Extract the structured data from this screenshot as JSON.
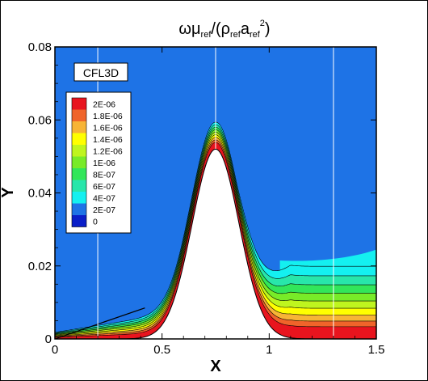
{
  "chart_data": {
    "type": "heatmap",
    "title_parts": {
      "omega": "ωμ",
      "ref1": "ref",
      "mid": "/(ρ",
      "ref2": "ref",
      "a": "a",
      "ref3": "ref",
      "sup": "2",
      "close": ")"
    },
    "xlabel": "X",
    "ylabel": "Y",
    "xlim": [
      0,
      1.5
    ],
    "ylim": [
      0,
      0.08
    ],
    "x_ticks": [
      0,
      0.5,
      1,
      1.5
    ],
    "x_tick_labels": [
      "0",
      "0.5",
      "1",
      "1.5"
    ],
    "y_ticks": [
      0,
      0.02,
      0.04,
      0.06,
      0.08
    ],
    "y_tick_labels": [
      "0",
      "0.02",
      "0.04",
      "0.06",
      "0.08"
    ],
    "solver_label": "CFL3D",
    "background_color": "#1e73e6",
    "legend": {
      "placement": "upper-left",
      "levels": [
        {
          "label": "2E-06",
          "color": "#e8141e"
        },
        {
          "label": "1.8E-06",
          "color": "#f0642a"
        },
        {
          "label": "1.6E-06",
          "color": "#f7b436"
        },
        {
          "label": "1.4E-06",
          "color": "#ffff00"
        },
        {
          "label": "1.2E-06",
          "color": "#bff51e"
        },
        {
          "label": "1E-06",
          "color": "#78eb28"
        },
        {
          "label": "8E-07",
          "color": "#32e65a"
        },
        {
          "label": "6E-07",
          "color": "#28e6aa"
        },
        {
          "label": "4E-07",
          "color": "#14f0f0"
        },
        {
          "label": "2E-07",
          "color": "#1e73e6"
        },
        {
          "label": "0",
          "color": "#0a1ec8"
        }
      ]
    },
    "bump": {
      "center_x": 0.75,
      "peak_y": 0.052,
      "foot_left_x": 0.2,
      "foot_right_x": 1.3
    },
    "reference_lines_x": [
      0.2,
      0.75,
      1.3
    ]
  }
}
